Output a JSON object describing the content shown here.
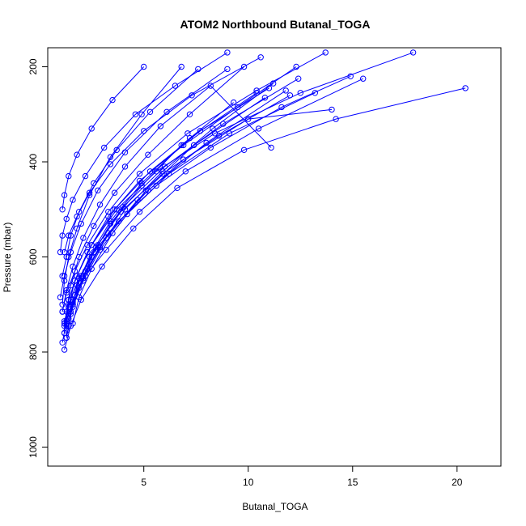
{
  "chart_data": {
    "type": "line",
    "title": "ATOM2 Northbound Butanal_TOGA",
    "xlabel": "Butanal_TOGA",
    "ylabel": "Pressure (mbar)",
    "xlim": [
      0.4,
      22.1
    ],
    "ylim": [
      1040,
      160
    ],
    "y_reversed": true,
    "x_ticks": [
      5,
      10,
      15,
      20
    ],
    "y_ticks": [
      200,
      400,
      600,
      800,
      1000
    ],
    "grid": false,
    "legend": "none",
    "colors": {
      "series": "#0000ff",
      "axis": "#000000"
    },
    "marker": "open-circle",
    "series": [
      {
        "x": [
          1.2,
          1.3,
          1.5,
          1.9,
          2.6,
          3.6,
          5.2,
          7.2,
          9.8
        ],
        "y": [
          760,
          715,
          660,
          600,
          535,
          465,
          385,
          300,
          200
        ]
      },
      {
        "x": [
          1.1,
          1.3,
          1.6,
          2.2,
          3.2,
          4.8,
          7.0,
          10.5,
          15.5
        ],
        "y": [
          780,
          735,
          690,
          640,
          585,
          505,
          420,
          330,
          225
        ]
      },
      {
        "x": [
          1.3,
          1.4,
          1.8,
          2.5,
          3.7,
          5.6,
          8.4,
          12.5,
          17.9
        ],
        "y": [
          740,
          690,
          640,
          575,
          500,
          420,
          340,
          255,
          170
        ]
      },
      {
        "x": [
          1.2,
          1.5,
          2.0,
          3.0,
          4.5,
          6.6,
          9.8,
          14.2,
          20.4
        ],
        "y": [
          795,
          745,
          690,
          620,
          540,
          455,
          375,
          310,
          245
        ]
      },
      {
        "x": [
          1.1,
          1.2,
          1.4,
          1.8,
          2.4,
          3.4,
          4.9,
          6.8
        ],
        "y": [
          700,
          650,
          600,
          540,
          470,
          390,
          300,
          200
        ]
      },
      {
        "x": [
          1.4,
          1.6,
          2.1,
          2.9,
          4.1,
          5.9,
          8.3,
          11.2
        ],
        "y": [
          745,
          700,
          645,
          580,
          500,
          420,
          330,
          235
        ]
      },
      {
        "x": [
          1.0,
          1.1,
          1.3,
          1.6,
          2.2,
          3.1,
          4.6,
          6.5,
          9.0
        ],
        "y": [
          590,
          555,
          520,
          480,
          430,
          370,
          300,
          240,
          170
        ]
      },
      {
        "x": [
          1.2,
          1.4,
          1.7,
          2.3,
          3.3,
          4.8,
          6.9,
          9.5,
          12.3
        ],
        "y": [
          760,
          705,
          650,
          590,
          515,
          440,
          365,
          285,
          200
        ]
      },
      {
        "x": [
          1.3,
          1.6,
          2.2,
          3.3,
          5.2,
          8.0,
          11.8
        ],
        "y": [
          770,
          700,
          630,
          550,
          460,
          360,
          250
        ]
      },
      {
        "x": [
          1.1,
          1.3,
          1.5,
          1.9,
          2.6,
          3.7,
          5.3,
          7.6
        ],
        "y": [
          640,
          600,
          555,
          505,
          445,
          375,
          295,
          205
        ]
      },
      {
        "x": [
          1.2,
          1.5,
          1.9,
          2.6,
          3.8,
          5.6,
          8.2,
          11.6,
          14.9
        ],
        "y": [
          735,
          690,
          645,
          590,
          525,
          450,
          370,
          285,
          220
        ]
      },
      {
        "x": [
          1.5,
          1.8,
          2.4,
          3.4,
          4.9,
          7.2,
          10.4
        ],
        "y": [
          715,
          660,
          600,
          525,
          445,
          350,
          255
        ]
      },
      {
        "x": [
          1.1,
          1.2,
          1.4,
          1.8,
          2.5,
          3.5,
          5.0
        ],
        "y": [
          500,
          470,
          430,
          385,
          330,
          270,
          200
        ]
      },
      {
        "x": [
          1.2,
          1.4,
          1.8,
          2.5,
          3.6,
          5.3,
          7.7,
          11.0
        ],
        "y": [
          740,
          690,
          640,
          575,
          500,
          420,
          335,
          245
        ]
      },
      {
        "x": [
          1.3,
          1.6,
          2.0,
          2.8,
          4.0,
          6.0,
          8.8,
          12.4
        ],
        "y": [
          745,
          695,
          640,
          575,
          495,
          410,
          320,
          225
        ]
      },
      {
        "x": [
          1.1,
          1.3,
          1.6,
          2.1,
          2.9,
          4.1,
          5.8,
          8.2,
          11.1
        ],
        "y": [
          715,
          670,
          620,
          560,
          490,
          410,
          325,
          240,
          370
        ]
      },
      {
        "x": [
          1.4,
          1.7,
          2.3,
          3.2,
          4.7,
          6.9,
          10.0,
          14.0
        ],
        "y": [
          730,
          680,
          625,
          560,
          480,
          395,
          310,
          290
        ]
      },
      {
        "x": [
          1.0,
          1.2,
          1.5,
          2.0,
          2.8,
          4.1,
          6.1,
          9.0
        ],
        "y": [
          685,
          640,
          590,
          530,
          460,
          380,
          295,
          205
        ]
      },
      {
        "x": [
          1.2,
          1.4,
          1.9,
          2.7,
          3.9,
          5.9,
          8.6,
          12.0
        ],
        "y": [
          745,
          700,
          645,
          580,
          505,
          425,
          345,
          260
        ]
      },
      {
        "x": [
          1.3,
          1.5,
          1.9,
          2.5,
          3.4,
          4.9,
          6.8,
          9.3
        ],
        "y": [
          770,
          720,
          665,
          600,
          530,
          450,
          365,
          275
        ]
      },
      {
        "x": [
          1.1,
          1.3,
          1.7,
          2.3,
          3.3,
          4.8,
          7.1,
          10.4,
          13.7
        ],
        "y": [
          715,
          675,
          630,
          575,
          505,
          425,
          340,
          250,
          170
        ]
      },
      {
        "x": [
          1.6,
          1.9,
          2.5,
          3.5,
          5.1,
          7.4,
          10.8
        ],
        "y": [
          740,
          685,
          625,
          550,
          460,
          365,
          265
        ]
      },
      {
        "x": [
          1.2,
          1.4,
          1.8,
          2.4,
          3.4,
          5.0,
          7.3,
          10.6
        ],
        "y": [
          590,
          555,
          515,
          465,
          405,
          335,
          260,
          180
        ]
      },
      {
        "x": [
          1.3,
          1.6,
          2.1,
          2.9,
          4.2,
          6.2,
          9.1,
          13.2
        ],
        "y": [
          755,
          705,
          650,
          585,
          510,
          425,
          340,
          255
        ]
      }
    ]
  }
}
